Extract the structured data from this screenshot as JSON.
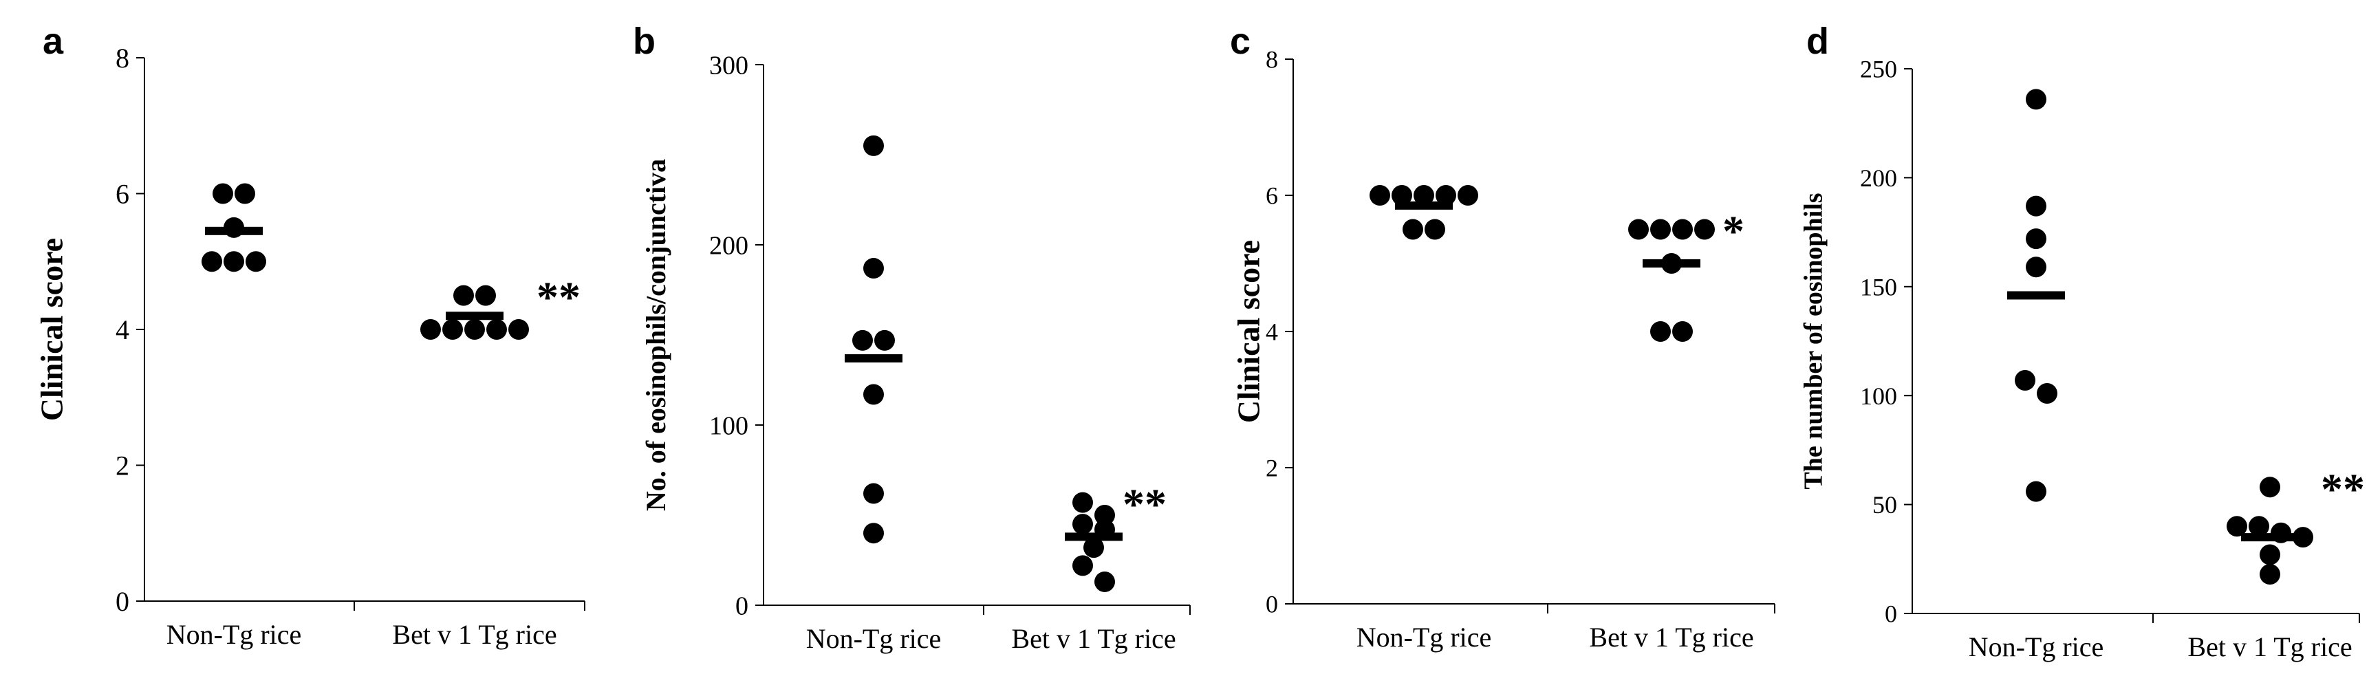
{
  "chart_data": [
    {
      "type": "scatter",
      "panel_label": "a",
      "ylabel": "Clinical score",
      "xlabel": "",
      "ylim": [
        0,
        8
      ],
      "yticks": [
        "0",
        "2",
        "4",
        "6",
        "8"
      ],
      "categories": [
        "Non-Tg rice",
        "Bet  v 1 Tg rice"
      ],
      "series": [
        {
          "name": "Non-Tg rice",
          "values": [
            5,
            5,
            5,
            5.5,
            6,
            6
          ],
          "mean": 5.45,
          "significance": ""
        },
        {
          "name": "Bet  v 1 Tg rice",
          "values": [
            4,
            4,
            4,
            4,
            4,
            4.5,
            4.5
          ],
          "mean": 4.2,
          "significance": "**"
        }
      ]
    },
    {
      "type": "scatter",
      "panel_label": "b",
      "ylabel": "No. of eosinophils/conjunctiva",
      "xlabel": "",
      "ylim": [
        0,
        300
      ],
      "yticks": [
        "0",
        "100",
        "200",
        "300"
      ],
      "categories": [
        "Non-Tg rice",
        "Bet  v 1 Tg rice"
      ],
      "series": [
        {
          "name": "Non-Tg rice",
          "values": [
            255,
            187,
            147,
            147,
            117,
            62,
            40
          ],
          "mean": 137,
          "significance": ""
        },
        {
          "name": "Bet  v 1 Tg rice",
          "values": [
            57,
            50,
            45,
            42,
            32,
            22,
            13
          ],
          "mean": 38,
          "significance": "**"
        }
      ]
    },
    {
      "type": "scatter",
      "panel_label": "c",
      "ylabel": "Clinical score",
      "xlabel": "",
      "ylim": [
        0,
        8
      ],
      "yticks": [
        "0",
        "2",
        "4",
        "6",
        "8"
      ],
      "categories": [
        "Non-Tg rice",
        "Bet  v 1 Tg rice"
      ],
      "series": [
        {
          "name": "Non-Tg rice",
          "values": [
            6,
            6,
            6,
            6,
            6,
            5.5,
            5.5
          ],
          "mean": 5.85,
          "significance": ""
        },
        {
          "name": "Bet  v 1 Tg rice",
          "values": [
            5.5,
            5.5,
            5.5,
            5.5,
            5,
            4,
            4
          ],
          "mean": 5.0,
          "significance": "*"
        }
      ]
    },
    {
      "type": "scatter",
      "panel_label": "d",
      "ylabel": "The number of eosinophils",
      "xlabel": "",
      "ylim": [
        0,
        250
      ],
      "yticks": [
        "0",
        "50",
        "100",
        "150",
        "200",
        "250"
      ],
      "categories": [
        "Non-Tg rice",
        "Bet  v 1 Tg rice"
      ],
      "series": [
        {
          "name": "Non-Tg rice",
          "values": [
            236,
            187,
            172,
            159,
            107,
            101,
            56
          ],
          "mean": 146,
          "significance": ""
        },
        {
          "name": "Bet  v 1 Tg rice",
          "values": [
            58,
            40,
            40,
            37,
            35,
            27,
            18
          ],
          "mean": 35,
          "significance": "**"
        }
      ]
    }
  ]
}
